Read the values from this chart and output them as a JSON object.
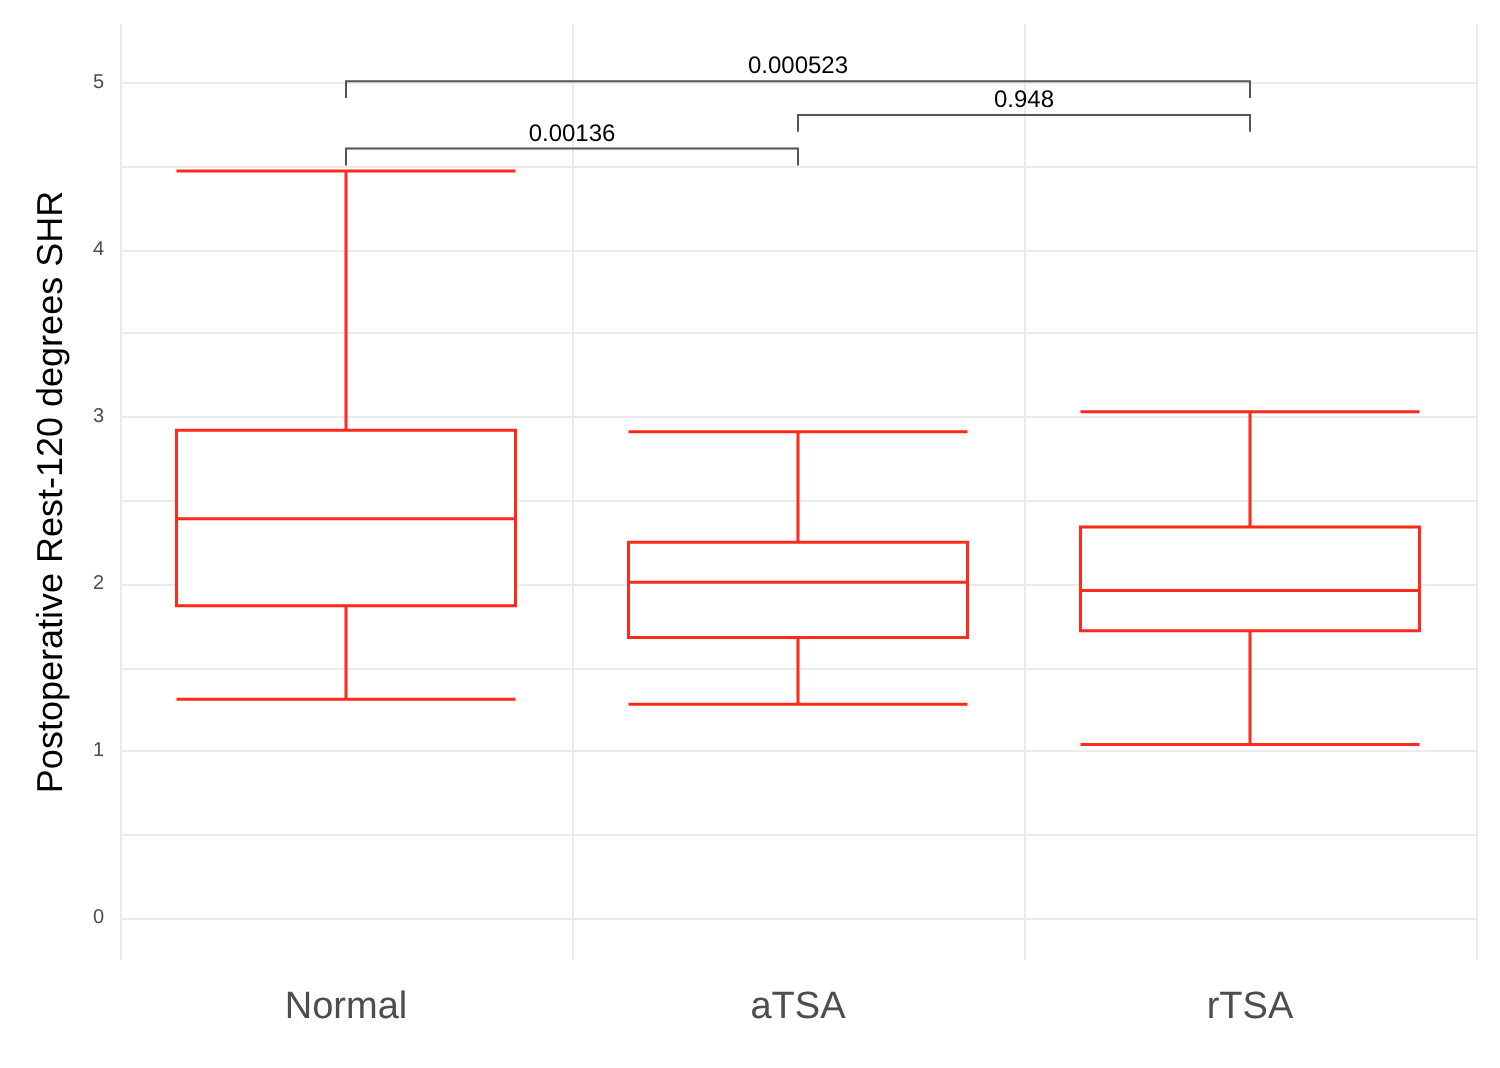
{
  "chart_data": {
    "type": "box",
    "ylabel": "Postoperative Rest-120 degrees SHR",
    "categories": [
      "Normal",
      "aTSA",
      "rTSA"
    ],
    "series": [
      {
        "color": "#ff2a1a",
        "boxes": [
          {
            "low": 1.31,
            "q1": 1.87,
            "median": 2.39,
            "q3": 2.92,
            "high": 4.47
          },
          {
            "low": 1.28,
            "q1": 1.68,
            "median": 2.01,
            "q3": 2.25,
            "high": 2.91
          },
          {
            "low": 1.04,
            "q1": 1.72,
            "median": 1.96,
            "q3": 2.34,
            "high": 3.03
          }
        ]
      }
    ],
    "ylim": [
      -0.25,
      5.35
    ],
    "yticks": [
      0,
      {
        "value": 0.5,
        "label": null
      },
      1,
      {
        "value": 1.5,
        "label": null
      },
      2,
      {
        "value": 2.5,
        "label": null
      },
      3,
      {
        "value": 3.5,
        "label": null
      },
      4,
      {
        "value": 4.5,
        "label": null
      },
      5
    ],
    "grid": true,
    "annotations": [
      "0.000523",
      "0.948",
      "0.00136"
    ]
  }
}
